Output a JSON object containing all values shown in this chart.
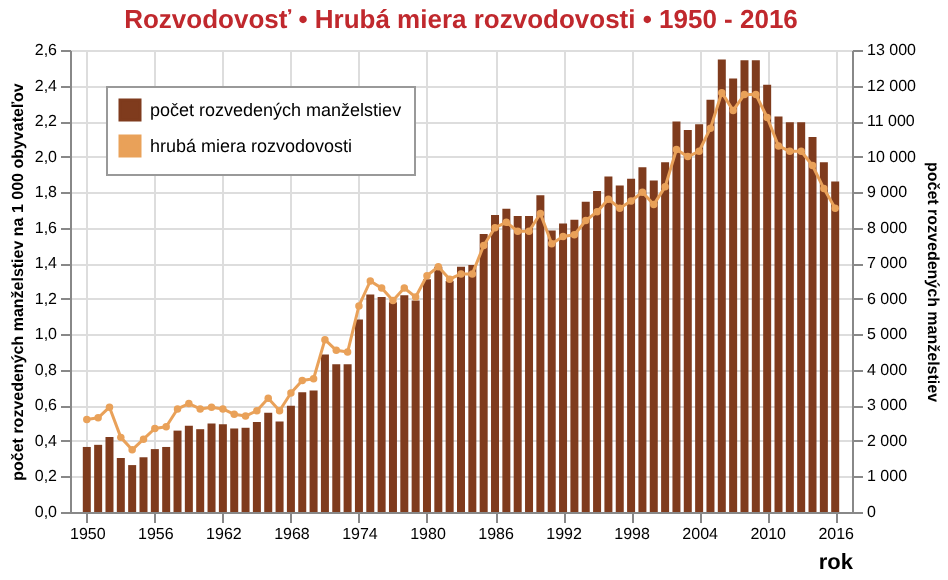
{
  "chart_data": {
    "type": "bar",
    "title": "Rozvodovosť • Hrubá miera rozvodovosti • 1950 - 2016",
    "xlabel": "rok",
    "ylabel": "počet rozvedených manželstiev na 1 000 obyvateľov",
    "y2label": "počet rozvedených manželstiev",
    "x": [
      1950,
      1951,
      1952,
      1953,
      1954,
      1955,
      1956,
      1957,
      1958,
      1959,
      1960,
      1961,
      1962,
      1963,
      1964,
      1965,
      1966,
      1967,
      1968,
      1969,
      1970,
      1971,
      1972,
      1973,
      1974,
      1975,
      1976,
      1977,
      1978,
      1979,
      1980,
      1981,
      1982,
      1983,
      1984,
      1985,
      1986,
      1987,
      1988,
      1989,
      1990,
      1991,
      1992,
      1993,
      1994,
      1995,
      1996,
      1997,
      1998,
      1999,
      2000,
      2001,
      2002,
      2003,
      2004,
      2005,
      2006,
      2007,
      2008,
      2009,
      2010,
      2011,
      2012,
      2013,
      2014,
      2015,
      2016
    ],
    "series": [
      {
        "name": "počet rozvedených manželstiev",
        "axis": "y2",
        "color": "#7f3b1d",
        "values": [
          1830,
          1890,
          2110,
          1520,
          1320,
          1540,
          1770,
          1830,
          2290,
          2430,
          2330,
          2490,
          2470,
          2350,
          2370,
          2530,
          2790,
          2550,
          2990,
          3370,
          3420,
          4430,
          4160,
          4160,
          5420,
          6120,
          6050,
          5900,
          6100,
          5950,
          6550,
          6900,
          6500,
          6900,
          6950,
          7820,
          8360,
          8530,
          8330,
          8330,
          8910,
          7920,
          8120,
          8220,
          8730,
          9030,
          9440,
          9190,
          9380,
          9700,
          9330,
          9840,
          10990,
          10750,
          10910,
          11600,
          12730,
          12200,
          12710,
          12710,
          12020,
          11130,
          10970,
          10970,
          10550,
          9840,
          9300
        ]
      },
      {
        "name": "hrubá miera rozvodovosti",
        "type": "line",
        "axis": "y",
        "color": "#e9a159",
        "marker": "circle",
        "values": [
          0.52,
          0.53,
          0.59,
          0.42,
          0.35,
          0.41,
          0.47,
          0.48,
          0.58,
          0.61,
          0.58,
          0.59,
          0.58,
          0.55,
          0.54,
          0.57,
          0.64,
          0.57,
          0.67,
          0.74,
          0.75,
          0.97,
          0.91,
          0.9,
          1.16,
          1.3,
          1.26,
          1.19,
          1.26,
          1.21,
          1.33,
          1.38,
          1.31,
          1.34,
          1.34,
          1.5,
          1.6,
          1.63,
          1.58,
          1.58,
          1.68,
          1.51,
          1.55,
          1.56,
          1.64,
          1.69,
          1.76,
          1.71,
          1.75,
          1.8,
          1.73,
          1.83,
          2.04,
          2.0,
          2.03,
          2.16,
          2.36,
          2.26,
          2.35,
          2.35,
          2.22,
          2.06,
          2.03,
          2.03,
          1.95,
          1.82,
          1.71
        ]
      }
    ],
    "xlim": [
      1949.4,
      2016.6
    ],
    "xticks": [
      1950,
      1956,
      1962,
      1968,
      1974,
      1980,
      1986,
      1992,
      1998,
      2004,
      2010,
      2016
    ],
    "ylim": [
      0,
      2.6
    ],
    "yticks": [
      {
        "value": 0,
        "label": "0,0"
      },
      {
        "value": 0.2,
        "label": "0,2"
      },
      {
        "value": 0.4,
        "label": "0,4"
      },
      {
        "value": 0.6,
        "label": "0,6"
      },
      {
        "value": 0.8,
        "label": "0,8"
      },
      {
        "value": 1.0,
        "label": "1,0"
      },
      {
        "value": 1.2,
        "label": "1,2"
      },
      {
        "value": 1.4,
        "label": "1,4"
      },
      {
        "value": 1.6,
        "label": "1,6"
      },
      {
        "value": 1.8,
        "label": "1,8"
      },
      {
        "value": 2.0,
        "label": "2,0"
      },
      {
        "value": 2.2,
        "label": "2,2"
      },
      {
        "value": 2.4,
        "label": "2,4"
      },
      {
        "value": 2.6,
        "label": "2,6"
      }
    ],
    "y2lim": [
      0,
      13000
    ],
    "y2ticks": [
      0,
      {
        "value": 1000,
        "label": "1 000"
      },
      {
        "value": 2000,
        "label": "2 000"
      },
      {
        "value": 3000,
        "label": "3 000"
      },
      {
        "value": 4000,
        "label": "4 000"
      },
      {
        "value": 5000,
        "label": "5 000"
      },
      {
        "value": 6000,
        "label": "6 000"
      },
      {
        "value": 7000,
        "label": "7 000"
      },
      {
        "value": 8000,
        "label": "8 000"
      },
      {
        "value": 9000,
        "label": "9 000"
      },
      {
        "value": 10000,
        "label": "10 000"
      },
      {
        "value": 11000,
        "label": "11 000"
      },
      {
        "value": 12000,
        "label": "12 000"
      },
      {
        "value": 13000,
        "label": "13 000"
      }
    ],
    "grid": true,
    "legend": "top left"
  }
}
